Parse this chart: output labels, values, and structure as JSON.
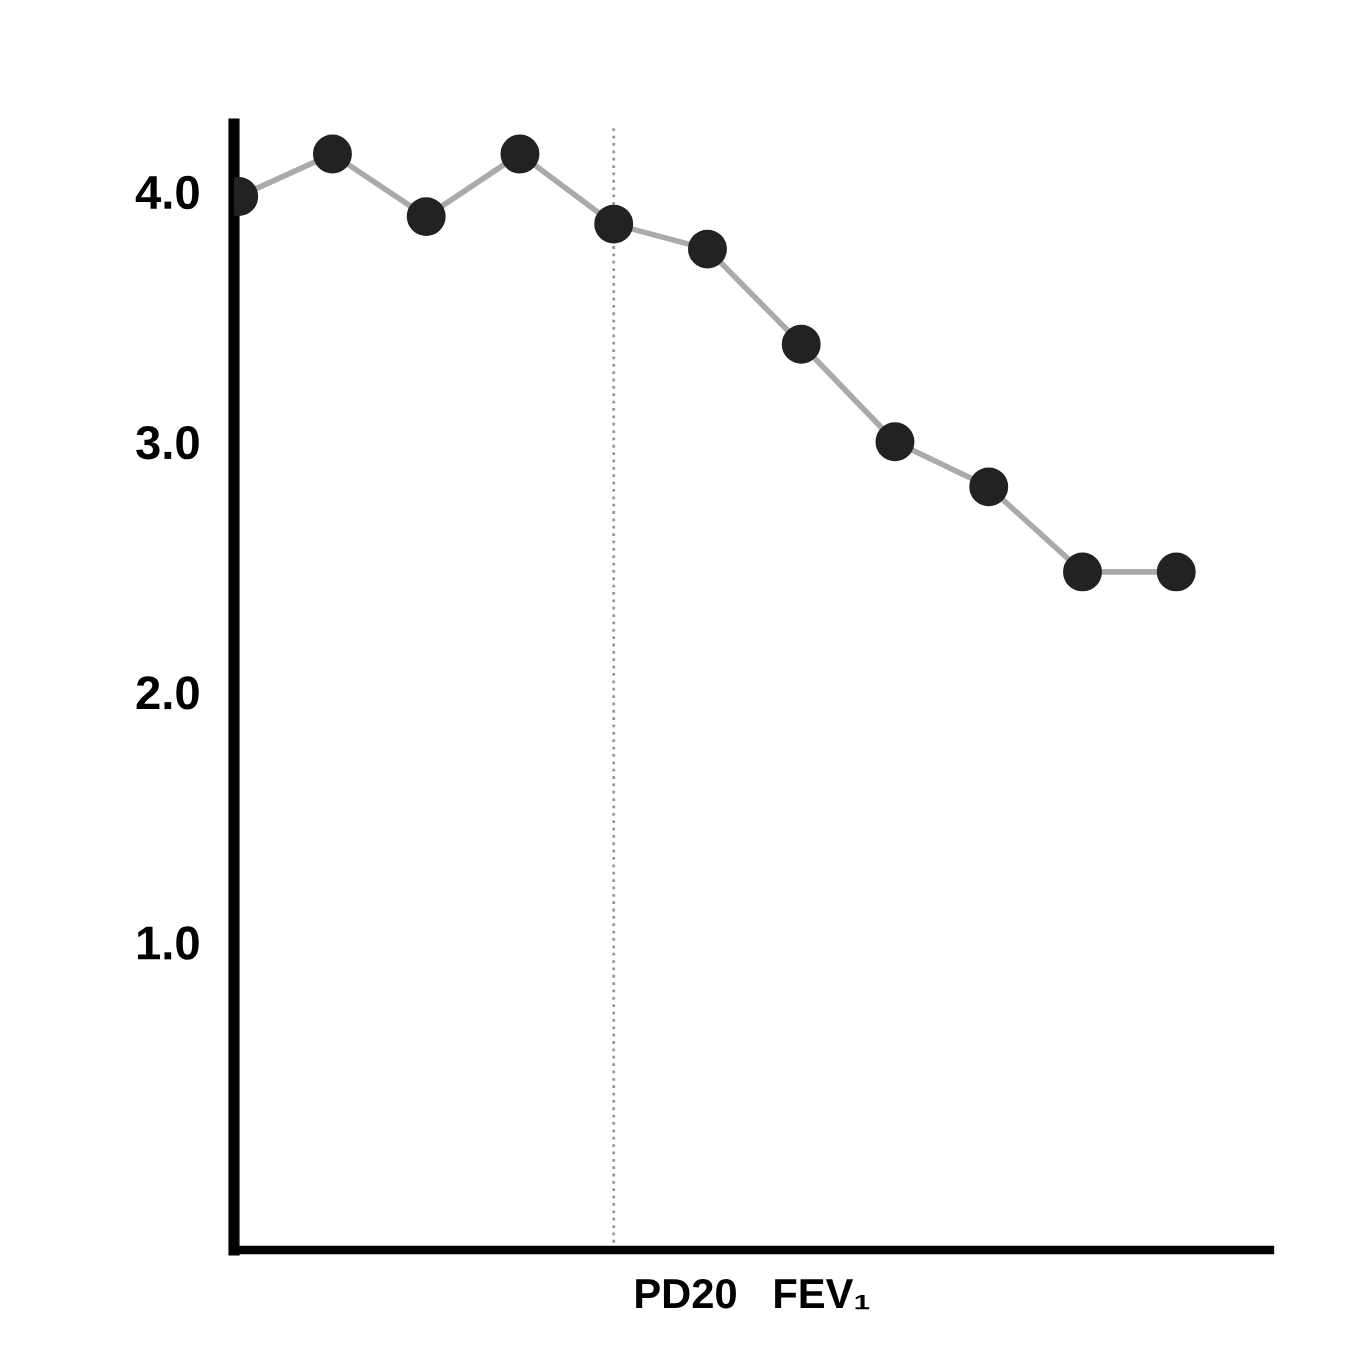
{
  "chart_data": {
    "type": "line",
    "xlabel": "PD20   FEV₁",
    "categories": [
      null,
      null,
      null,
      null,
      null,
      null,
      null,
      null,
      null,
      null,
      null
    ],
    "series": [
      {
        "color": "#222222",
        "values": [
          3.98,
          4.15,
          3.9,
          4.15,
          3.87,
          3.77,
          3.39,
          3.0,
          2.82,
          2.48,
          2.48
        ]
      }
    ],
    "ylim": [
      -0.23,
      4.27
    ],
    "yticks": [
      {
        "value": 1,
        "label": "1.0"
      },
      {
        "value": 2,
        "label": "2.0"
      },
      {
        "value": 3,
        "label": "3.0"
      },
      {
        "value": 4,
        "label": "4.0"
      }
    ],
    "marker": "circle",
    "line_style": "solid",
    "tick_labels": "y"
  }
}
